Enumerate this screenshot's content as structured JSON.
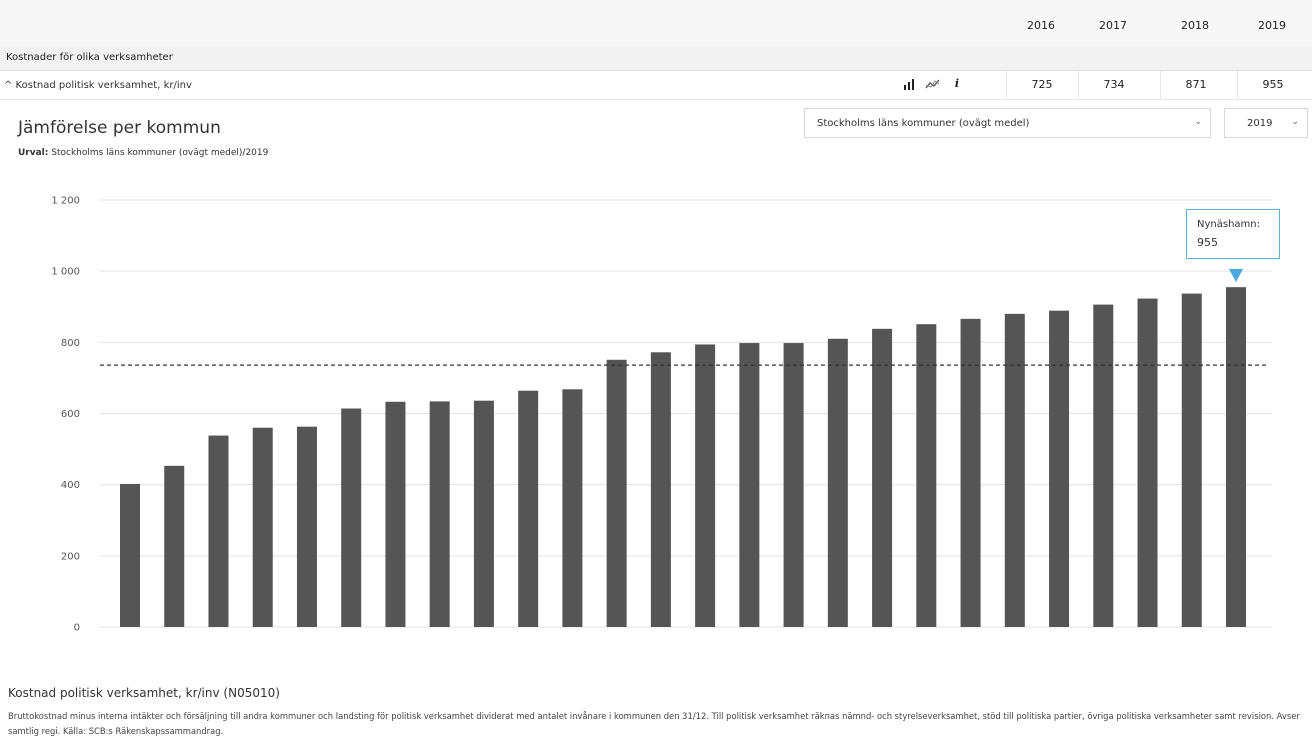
{
  "header": {
    "years": [
      "2016",
      "2017",
      "2018",
      "2019"
    ]
  },
  "section": {
    "title": "Kostnader för olika verksamheter"
  },
  "row": {
    "label": "^ Kostnad politisk verksamhet, kr/inv",
    "icons": [
      "bar-chart-icon",
      "trend-chart-icon",
      "info-icon"
    ],
    "values": [
      "725",
      "734",
      "871",
      "955"
    ]
  },
  "comparison": {
    "title": "Jämförelse per kommun",
    "urval_label": "Urval:",
    "urval_value": "Stockholms läns kommuner (ovägt medel)/2019",
    "group_select": "Stockholms läns kommuner (ovägt medel)",
    "year_select": "2019"
  },
  "tooltip": {
    "name": "Nynäshamn:",
    "value": "955"
  },
  "chart_data": {
    "type": "bar",
    "title": "",
    "xlabel": "",
    "ylabel": "",
    "ylim": [
      0,
      1200
    ],
    "yticks": [
      "0",
      "200",
      "400",
      "600",
      "800",
      "1 000",
      "1 200"
    ],
    "values": [
      402,
      453,
      538,
      560,
      563,
      614,
      633,
      634,
      636,
      664,
      668,
      751,
      772,
      794,
      798,
      798,
      810,
      838,
      851,
      866,
      880,
      889,
      906,
      923,
      937,
      955
    ],
    "reference_line": 736,
    "highlighted_index": 25,
    "bar_color": "#555555",
    "reference_line_style": "dashed",
    "grid": true
  },
  "description": {
    "title": "Kostnad politisk verksamhet, kr/inv (N05010)",
    "text": "Bruttokostnad minus interna intäkter och försäljning till andra kommuner och landsting för politisk verksamhet dividerat med antalet invånare i kommunen den 31/12. Till politisk verksamhet räknas nämnd- och styrelseverksamhet, stöd till politiska partier, övriga politiska verksamheter samt revision. Avser samtlig regi. Källa: SCB:s Räkenskapssammandrag."
  }
}
